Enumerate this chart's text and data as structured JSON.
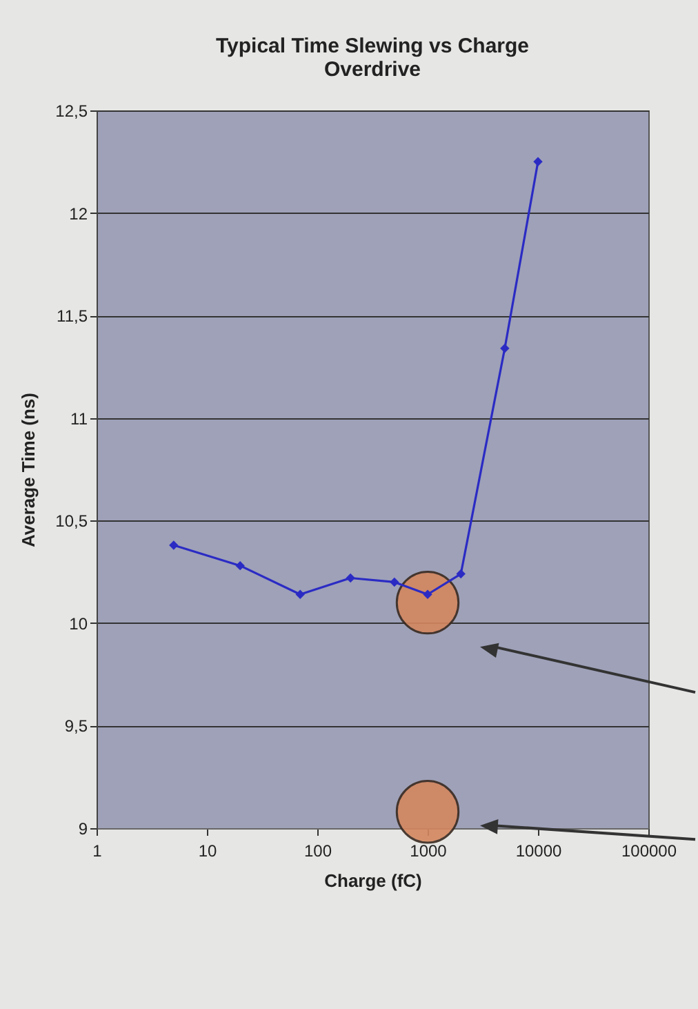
{
  "chart_data": {
    "type": "line",
    "title": "Typical Time Slewing vs Charge Overdrive",
    "xlabel": "Charge (fC)",
    "ylabel": "Average Time (ns)",
    "x": [
      5,
      20,
      70,
      200,
      500,
      1000,
      2000,
      5000,
      10000
    ],
    "series": [
      {
        "color": "#2b2bc4",
        "marker": "diamond",
        "values": [
          10.38,
          10.28,
          10.14,
          10.22,
          10.2,
          10.14,
          10.24,
          11.34,
          12.25
        ]
      },
      {
        "type": "scatter",
        "color": "#d4875f",
        "marker": "circle",
        "x": [
          1000,
          1000
        ],
        "values": [
          9.08,
          10.1
        ]
      }
    ],
    "xlim": [
      1,
      100000
    ],
    "xticks": [
      1,
      10,
      100,
      1000,
      10000,
      100000
    ],
    "log": "x",
    "ylim": [
      9,
      12.5
    ],
    "yticks": [
      9,
      {
        "value": 9.5,
        "label": "9,5"
      },
      10,
      {
        "value": 10.5,
        "label": "10,5"
      },
      11,
      {
        "value": 11.5,
        "label": "11,5"
      },
      12,
      {
        "value": 12.5,
        "label": "12,5"
      }
    ],
    "grid": "y"
  }
}
